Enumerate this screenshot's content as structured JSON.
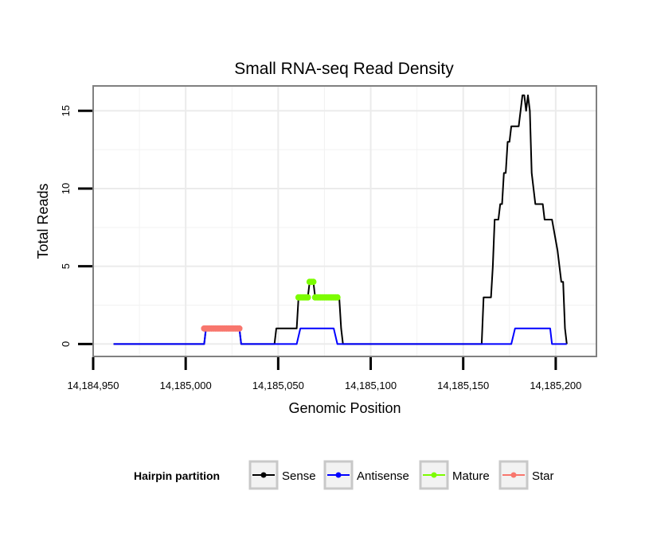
{
  "chart_data": {
    "type": "line",
    "title": "Small RNA-seq Read Density",
    "xlabel": "Genomic Position",
    "ylabel": "Total Reads",
    "xlim": [
      14184950,
      14185222
    ],
    "ylim": [
      -0.8,
      16.6
    ],
    "x_ticks": [
      14184950,
      14185000,
      14185050,
      14185100,
      14185150,
      14185200
    ],
    "x_tick_labels": [
      "14,184,950",
      "14,185,000",
      "14,185,050",
      "14,185,100",
      "14,185,150",
      "14,185,200"
    ],
    "y_ticks": [
      0,
      5,
      10,
      15
    ],
    "y_tick_labels": [
      "0",
      "5",
      "10",
      "15"
    ],
    "grid": true,
    "legend": {
      "title": "Hairpin partition",
      "position": "bottom",
      "entries": [
        "Sense",
        "Antisense",
        "Mature",
        "Star"
      ]
    },
    "series": [
      {
        "name": "Sense",
        "color": "#000000",
        "style": "line",
        "points": [
          [
            14184961,
            0
          ],
          [
            14185010,
            0
          ],
          [
            14185011,
            1
          ],
          [
            14185029,
            1
          ],
          [
            14185030,
            0
          ],
          [
            14185048,
            0
          ],
          [
            14185049,
            1
          ],
          [
            14185060,
            1
          ],
          [
            14185061,
            3
          ],
          [
            14185066,
            3
          ],
          [
            14185067,
            4
          ],
          [
            14185069,
            4
          ],
          [
            14185070,
            3
          ],
          [
            14185083,
            3
          ],
          [
            14185084,
            1
          ],
          [
            14185085,
            0
          ],
          [
            14185160,
            0
          ],
          [
            14185161,
            3
          ],
          [
            14185165,
            3
          ],
          [
            14185166,
            5
          ],
          [
            14185167,
            8
          ],
          [
            14185169,
            8
          ],
          [
            14185170,
            9
          ],
          [
            14185171,
            9
          ],
          [
            14185172,
            11
          ],
          [
            14185173,
            11
          ],
          [
            14185174,
            13
          ],
          [
            14185175,
            13
          ],
          [
            14185176,
            14
          ],
          [
            14185180,
            14
          ],
          [
            14185182,
            16
          ],
          [
            14185183,
            16
          ],
          [
            14185184,
            15
          ],
          [
            14185185,
            16
          ],
          [
            14185186,
            15
          ],
          [
            14185187,
            11
          ],
          [
            14185189,
            9
          ],
          [
            14185193,
            9
          ],
          [
            14185194,
            8
          ],
          [
            14185198,
            8
          ],
          [
            14185201,
            6
          ],
          [
            14185203,
            4
          ],
          [
            14185204,
            4
          ],
          [
            14185205,
            1
          ],
          [
            14185206,
            0
          ]
        ]
      },
      {
        "name": "Antisense",
        "color": "#0000ff",
        "style": "line",
        "points": [
          [
            14184961,
            0
          ],
          [
            14185010,
            0
          ],
          [
            14185011,
            1
          ],
          [
            14185029,
            1
          ],
          [
            14185030,
            0
          ],
          [
            14185060,
            0
          ],
          [
            14185062,
            1
          ],
          [
            14185080,
            1
          ],
          [
            14185082,
            0
          ],
          [
            14185176,
            0
          ],
          [
            14185178,
            1
          ],
          [
            14185197,
            1
          ],
          [
            14185198,
            0
          ],
          [
            14185206,
            0
          ]
        ]
      },
      {
        "name": "Mature",
        "color": "#7cfc00",
        "style": "dots",
        "segments": [
          {
            "x0": 14185061,
            "x1": 14185066,
            "y": 3
          },
          {
            "x0": 14185067,
            "x1": 14185069,
            "y": 4
          },
          {
            "x0": 14185070,
            "x1": 14185082,
            "y": 3
          }
        ]
      },
      {
        "name": "Star",
        "color": "#f8766d",
        "style": "dots",
        "segments": [
          {
            "x0": 14185010,
            "x1": 14185029,
            "y": 1
          }
        ]
      }
    ]
  }
}
